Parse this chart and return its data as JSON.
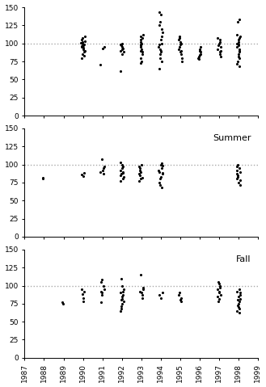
{
  "spring_data": {
    "1990": [
      80,
      83,
      85,
      88,
      90,
      92,
      94,
      95,
      96,
      97,
      98,
      99,
      100,
      101,
      102,
      103,
      105,
      108,
      110
    ],
    "1991": [
      70,
      93,
      95
    ],
    "1992": [
      62,
      85,
      88,
      90,
      92,
      93,
      95,
      97,
      98,
      100
    ],
    "1993": [
      73,
      75,
      80,
      85,
      88,
      90,
      92,
      95,
      97,
      98,
      100,
      102,
      105,
      108,
      110,
      112
    ],
    "1994": [
      65,
      75,
      80,
      85,
      88,
      90,
      92,
      95,
      98,
      100,
      105,
      110,
      115,
      120,
      125,
      130,
      140,
      143
    ],
    "1995": [
      75,
      80,
      85,
      88,
      90,
      92,
      95,
      98,
      100,
      102,
      105,
      108,
      110
    ],
    "1996": [
      78,
      80,
      82,
      84,
      85,
      88,
      90,
      92,
      95
    ],
    "1997": [
      82,
      85,
      88,
      90,
      92,
      95,
      97,
      100,
      102,
      105,
      108
    ],
    "1998": [
      68,
      72,
      75,
      80,
      82,
      85,
      88,
      90,
      92,
      95,
      97,
      98,
      100,
      102,
      105,
      108,
      110,
      112,
      130,
      133
    ]
  },
  "summer_data": {
    "1988": [
      80,
      82
    ],
    "1990": [
      84,
      86,
      88
    ],
    "1991": [
      87,
      90,
      92,
      95,
      97,
      107
    ],
    "1992": [
      77,
      80,
      83,
      85,
      87,
      88,
      90,
      92,
      95,
      97,
      100,
      103
    ],
    "1993": [
      77,
      80,
      82,
      85,
      87,
      90,
      92,
      95,
      97,
      100
    ],
    "1994": [
      68,
      72,
      75,
      80,
      83,
      87,
      88,
      90,
      92,
      95,
      98,
      100,
      102
    ],
    "1998": [
      72,
      75,
      78,
      80,
      83,
      85,
      87,
      90,
      92,
      95,
      97,
      100
    ]
  },
  "fall_data": {
    "1989": [
      75,
      77
    ],
    "1990": [
      78,
      83,
      88,
      92,
      95
    ],
    "1991": [
      77,
      87,
      90,
      92,
      95,
      100,
      105,
      108
    ],
    "1992": [
      65,
      68,
      72,
      75,
      78,
      80,
      82,
      85,
      87,
      90,
      92,
      95,
      100,
      110
    ],
    "1993": [
      83,
      87,
      90,
      92,
      95,
      97,
      115
    ],
    "1994": [
      83,
      87,
      90
    ],
    "1995": [
      78,
      80,
      83,
      87,
      90
    ],
    "1997": [
      78,
      82,
      85,
      87,
      90,
      92,
      95,
      97,
      100,
      103,
      105
    ],
    "1998": [
      62,
      65,
      68,
      70,
      73,
      75,
      78,
      80,
      82,
      85,
      87,
      90,
      92,
      95
    ]
  },
  "xlim": [
    1987.0,
    1999.0
  ],
  "ylim": [
    0,
    150
  ],
  "yticks": [
    0,
    25,
    50,
    75,
    100,
    125,
    150
  ],
  "xticks": [
    1987,
    1988,
    1989,
    1990,
    1991,
    1992,
    1993,
    1994,
    1995,
    1996,
    1997,
    1998,
    1999
  ],
  "hline_y": 100,
  "hline_color": "#aaaaaa",
  "dot_color": "black",
  "dot_size": 5,
  "summer_label": "Summer",
  "fall_label": "Fall",
  "label_fontsize": 8,
  "tick_fontsize": 6.5,
  "background_color": "white",
  "jitter_scale": 0.1
}
